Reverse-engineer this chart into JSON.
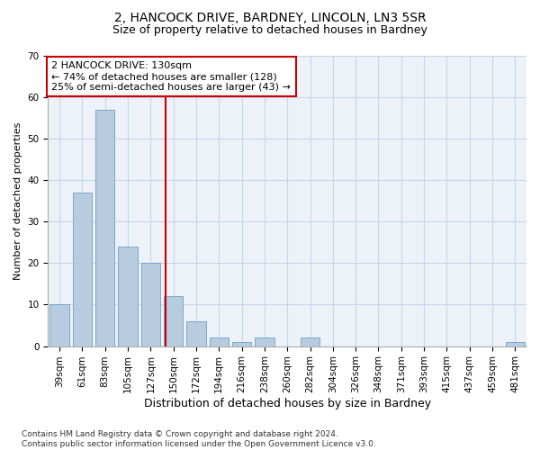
{
  "title1": "2, HANCOCK DRIVE, BARDNEY, LINCOLN, LN3 5SR",
  "title2": "Size of property relative to detached houses in Bardney",
  "xlabel": "Distribution of detached houses by size in Bardney",
  "ylabel": "Number of detached properties",
  "categories": [
    "39sqm",
    "61sqm",
    "83sqm",
    "105sqm",
    "127sqm",
    "150sqm",
    "172sqm",
    "194sqm",
    "216sqm",
    "238sqm",
    "260sqm",
    "282sqm",
    "304sqm",
    "326sqm",
    "348sqm",
    "371sqm",
    "393sqm",
    "415sqm",
    "437sqm",
    "459sqm",
    "481sqm"
  ],
  "values": [
    10,
    37,
    57,
    24,
    20,
    12,
    6,
    2,
    1,
    2,
    0,
    2,
    0,
    0,
    0,
    0,
    0,
    0,
    0,
    0,
    1
  ],
  "bar_color": "#b8ccdf",
  "bar_edge_color": "#6aa0c7",
  "vline_x": 4.65,
  "vline_color": "#cc0000",
  "annotation_line1": "2 HANCOCK DRIVE: 130sqm",
  "annotation_line2": "← 74% of detached houses are smaller (128)",
  "annotation_line3": "25% of semi-detached houses are larger (43) →",
  "annotation_box_color": "#cc0000",
  "ylim": [
    0,
    70
  ],
  "yticks": [
    0,
    10,
    20,
    30,
    40,
    50,
    60,
    70
  ],
  "grid_color": "#c8d4e8",
  "background_color": "#edf2f9",
  "footnote": "Contains HM Land Registry data © Crown copyright and database right 2024.\nContains public sector information licensed under the Open Government Licence v3.0.",
  "title1_fontsize": 10,
  "title2_fontsize": 9,
  "xlabel_fontsize": 9,
  "ylabel_fontsize": 8,
  "tick_fontsize": 7.5,
  "annotation_fontsize": 8,
  "footnote_fontsize": 6.5
}
